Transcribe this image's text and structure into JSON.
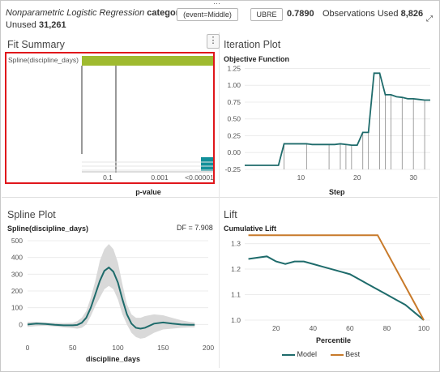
{
  "header": {
    "model_name": "Nonparametric Logistic Regression",
    "target": "category",
    "event_pill": "(event=Middle)",
    "metric_pill": "UBRE",
    "metric_value": "0.7890",
    "obs_used_label": "Observations Used",
    "obs_used_value": "8,826",
    "unused_label": "Unused",
    "unused_value": "31,261"
  },
  "fit_summary": {
    "title": "Fit Summary",
    "menu_glyph": "⋮",
    "effect_label": "Spline(discipline_days)",
    "xlabel": "p-value",
    "ticks": [
      "0.1",
      "0.001",
      "<0.00001"
    ],
    "colors": {
      "bar": "#9fba2f",
      "pvalue_bar": "#12909a"
    }
  },
  "iteration_plot": {
    "title": "Iteration Plot",
    "subtitle": "Objective Function",
    "xlabel": "Step",
    "color": "#1e6b6b"
  },
  "spline_plot": {
    "title": "Spline Plot",
    "subtitle": "Spline(discipline_days)",
    "df_text": "DF = 7.908",
    "xlabel": "discipline_days",
    "colors": {
      "line": "#1e6b6b",
      "band": "#d9d9d9"
    }
  },
  "lift_plot": {
    "title": "Lift",
    "subtitle": "Cumulative Lift",
    "xlabel": "Percentile",
    "legend": [
      {
        "label": "Model",
        "color": "#1e6b6b"
      },
      {
        "label": "Best",
        "color": "#c87a2a"
      }
    ]
  },
  "chart_data": [
    {
      "type": "line",
      "name": "iteration",
      "x": [
        0,
        1,
        2,
        3,
        4,
        5,
        6,
        7,
        8,
        9,
        10,
        11,
        12,
        13,
        14,
        15,
        16,
        17,
        18,
        19,
        20,
        21,
        22,
        23,
        24,
        25,
        26,
        27,
        28,
        29,
        30,
        31,
        32,
        33
      ],
      "y": [
        -0.19,
        -0.19,
        -0.19,
        -0.19,
        -0.19,
        -0.19,
        -0.19,
        0.13,
        0.13,
        0.13,
        0.13,
        0.13,
        0.12,
        0.12,
        0.12,
        0.12,
        0.12,
        0.13,
        0.12,
        0.11,
        0.11,
        0.3,
        0.3,
        1.18,
        1.18,
        0.86,
        0.86,
        0.83,
        0.82,
        0.8,
        0.8,
        0.79,
        0.78,
        0.78
      ],
      "spikes": [
        7,
        11,
        15,
        17,
        18,
        19,
        21,
        22,
        24,
        25,
        26,
        28,
        30,
        32
      ],
      "xticks": [
        10,
        20,
        30
      ],
      "yticks": [
        -0.25,
        0,
        0.25,
        0.5,
        0.75,
        1,
        1.25
      ],
      "xlim": [
        0,
        33
      ],
      "ylim": [
        -0.25,
        1.28
      ]
    },
    {
      "type": "area",
      "name": "spline",
      "x": [
        0,
        10,
        20,
        30,
        40,
        50,
        55,
        60,
        65,
        70,
        75,
        80,
        85,
        90,
        95,
        100,
        105,
        110,
        115,
        120,
        125,
        130,
        140,
        150,
        160,
        170,
        180,
        185
      ],
      "y": [
        0,
        5,
        3,
        -2,
        -5,
        -5,
        -3,
        10,
        40,
        100,
        180,
        260,
        320,
        340,
        315,
        250,
        150,
        60,
        5,
        -20,
        -25,
        -20,
        5,
        12,
        5,
        0,
        -2,
        -2
      ],
      "upper": [
        15,
        15,
        12,
        10,
        8,
        10,
        20,
        40,
        80,
        160,
        260,
        380,
        450,
        480,
        450,
        370,
        240,
        120,
        60,
        40,
        40,
        50,
        60,
        55,
        40,
        25,
        15,
        12
      ],
      "lower": [
        -15,
        -10,
        -8,
        -12,
        -18,
        -22,
        -25,
        -20,
        0,
        50,
        110,
        160,
        210,
        230,
        210,
        150,
        60,
        0,
        -50,
        -75,
        -85,
        -80,
        -50,
        -30,
        -25,
        -20,
        -18,
        -18
      ],
      "xticks": [
        0,
        50,
        100,
        150,
        200
      ],
      "yticks": [
        0,
        100,
        200,
        300,
        400,
        500
      ],
      "xlim": [
        0,
        200
      ],
      "ylim": [
        -100,
        500
      ]
    },
    {
      "type": "line",
      "name": "lift",
      "series": [
        {
          "name": "Model",
          "x": [
            5,
            10,
            15,
            20,
            25,
            30,
            35,
            40,
            45,
            50,
            55,
            60,
            65,
            70,
            75,
            80,
            85,
            90,
            95,
            100
          ],
          "y": [
            1.24,
            1.245,
            1.25,
            1.23,
            1.22,
            1.23,
            1.23,
            1.22,
            1.21,
            1.2,
            1.19,
            1.18,
            1.16,
            1.14,
            1.12,
            1.1,
            1.08,
            1.06,
            1.03,
            1.0
          ]
        },
        {
          "name": "Best",
          "x": [
            5,
            75,
            100
          ],
          "y": [
            1.333,
            1.333,
            1.0
          ]
        }
      ],
      "xticks": [
        20,
        40,
        60,
        80,
        100
      ],
      "yticks": [
        1.0,
        1.1,
        1.2,
        1.3
      ],
      "xlim": [
        3,
        100
      ],
      "ylim": [
        1.0,
        1.34
      ]
    }
  ]
}
